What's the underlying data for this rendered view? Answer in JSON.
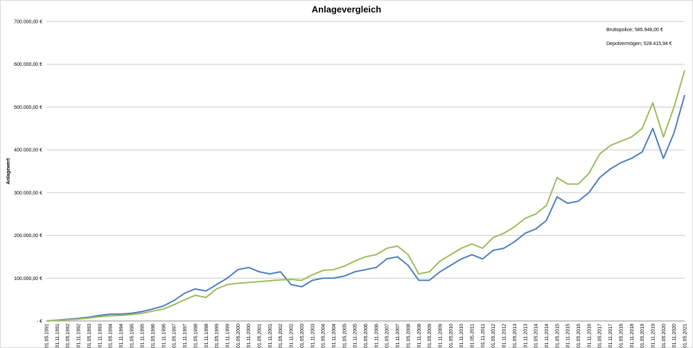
{
  "chart_data": {
    "type": "line",
    "title": "Anlagevergleich",
    "y_label": "Anlagewert",
    "annotations": [
      "Bruttopolice;  585.948,00 €",
      "Depotvermögen;  528.415,94 €"
    ],
    "categories": [
      "01.05.1991",
      "01.11.1991",
      "01.05.1992",
      "01.11.1992",
      "01.05.1993",
      "01.11.1993",
      "01.05.1994",
      "01.11.1994",
      "01.05.1995",
      "01.11.1995",
      "01.05.1996",
      "01.11.1996",
      "01.05.1997",
      "01.11.1997",
      "01.05.1998",
      "01.11.1998",
      "01.05.1999",
      "01.11.1999",
      "01.05.2000",
      "01.11.2000",
      "01.05.2001",
      "01.11.2001",
      "01.05.2002",
      "01.11.2002",
      "01.05.2003",
      "01.11.2003",
      "01.05.2004",
      "01.11.2004",
      "01.05.2005",
      "01.11.2005",
      "01.05.2006",
      "01.11.2006",
      "01.05.2007",
      "01.11.2007",
      "01.05.2008",
      "01.11.2008",
      "01.05.2009",
      "01.11.2009",
      "01.05.2010",
      "01.11.2010",
      "01.05.2011",
      "01.11.2011",
      "01.05.2012",
      "01.11.2012",
      "01.05.2013",
      "01.11.2013",
      "01.05.2014",
      "01.11.2014",
      "01.05.2015",
      "01.11.2015",
      "01.05.2016",
      "01.11.2016",
      "01.05.2017",
      "01.11.2017",
      "01.05.2018",
      "01.11.2018",
      "01.05.2019",
      "01.11.2019",
      "01.05.2020",
      "01.11.2020",
      "01.05.2021"
    ],
    "series": [
      {
        "color": "#4a7ebb",
        "values": [
          0,
          2000,
          4000,
          6000,
          9000,
          13000,
          16000,
          16000,
          18000,
          22000,
          28000,
          35000,
          48000,
          65000,
          75000,
          70000,
          85000,
          100000,
          120000,
          125000,
          115000,
          110000,
          115000,
          85000,
          80000,
          95000,
          100000,
          100000,
          105000,
          115000,
          120000,
          125000,
          145000,
          150000,
          130000,
          95000,
          95000,
          115000,
          130000,
          145000,
          155000,
          145000,
          165000,
          170000,
          185000,
          205000,
          215000,
          235000,
          290000,
          275000,
          280000,
          300000,
          335000,
          355000,
          370000,
          380000,
          395000,
          450000,
          380000,
          440000,
          528000
        ]
      },
      {
        "color": "#9bbb59",
        "values": [
          0,
          1500,
          3000,
          4500,
          7000,
          10000,
          12000,
          13000,
          15000,
          18000,
          23000,
          28000,
          38000,
          50000,
          60000,
          55000,
          75000,
          85000,
          88000,
          90000,
          92000,
          94000,
          96000,
          97000,
          95000,
          108000,
          118000,
          120000,
          128000,
          140000,
          150000,
          155000,
          170000,
          175000,
          155000,
          110000,
          115000,
          140000,
          155000,
          170000,
          180000,
          170000,
          195000,
          205000,
          220000,
          240000,
          250000,
          270000,
          335000,
          320000,
          320000,
          345000,
          390000,
          410000,
          420000,
          430000,
          450000,
          510000,
          430000,
          500000,
          586000
        ]
      }
    ],
    "ylim": [
      0,
      700000
    ],
    "yticks": [
      {
        "value": 0,
        "label": "- €"
      },
      {
        "value": 100000,
        "label": "100.000,00 €"
      },
      {
        "value": 200000,
        "label": "200.000,00 €"
      },
      {
        "value": 300000,
        "label": "300.000,00 €"
      },
      {
        "value": 400000,
        "label": "400.000,00 €"
      },
      {
        "value": 500000,
        "label": "500.000,00 €"
      },
      {
        "value": 600000,
        "label": "600.000,00 €"
      },
      {
        "value": 700000,
        "label": "700.000,00 €"
      }
    ],
    "grid": true
  }
}
